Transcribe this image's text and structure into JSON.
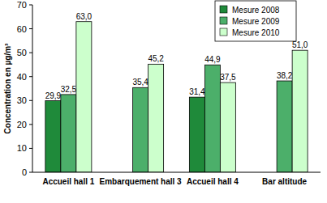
{
  "chart_data": {
    "type": "bar",
    "y_label": "Concentration en µg/m³",
    "categories": [
      "Accueil hall 1",
      "Embarquement hall 3",
      "Accueil hall 4",
      "Bar altitude"
    ],
    "series": [
      {
        "name": "Mesure 2008",
        "color": "#1f8a3a",
        "values": [
          29.9,
          null,
          31.4,
          null
        ],
        "value_labels": [
          "29,9",
          null,
          "31,4",
          null
        ]
      },
      {
        "name": "Mesure 2009",
        "color": "#4caf6a",
        "values": [
          32.5,
          35.4,
          44.9,
          38.2
        ],
        "value_labels": [
          "32,5",
          "35,4",
          "44,9",
          "38,2"
        ]
      },
      {
        "name": "Mesure 2010",
        "color": "#ccffcc",
        "values": [
          63.0,
          45.2,
          37.5,
          51.0
        ],
        "value_labels": [
          "63,0",
          "45,2",
          "37,5",
          "51,0"
        ]
      }
    ],
    "ylim": [
      0,
      70
    ],
    "yticks": [
      0,
      10,
      20,
      30,
      40,
      50,
      60,
      70
    ],
    "grid": false,
    "legend": "top-right",
    "data_labels": true
  }
}
